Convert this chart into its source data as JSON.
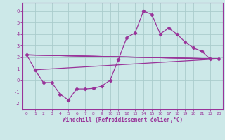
{
  "background_color": "#cce8e8",
  "grid_color": "#aacccc",
  "line_color": "#993399",
  "xlim": [
    -0.5,
    23.5
  ],
  "ylim": [
    -2.5,
    6.7
  ],
  "yticks": [
    -2,
    -1,
    0,
    1,
    2,
    3,
    4,
    5,
    6
  ],
  "xticks": [
    0,
    1,
    2,
    3,
    4,
    5,
    6,
    7,
    8,
    9,
    10,
    11,
    12,
    13,
    14,
    15,
    16,
    17,
    18,
    19,
    20,
    21,
    22,
    23
  ],
  "xlabel": "Windchill (Refroidissement éolien,°C)",
  "main_x": [
    0,
    1,
    2,
    3,
    4,
    5,
    6,
    7,
    8,
    9,
    10,
    11,
    12,
    13,
    14,
    15,
    16,
    17,
    18,
    19,
    20,
    21,
    22,
    23
  ],
  "main_y": [
    2.2,
    0.9,
    -0.2,
    -0.2,
    -1.2,
    -1.7,
    -0.75,
    -0.75,
    -0.7,
    -0.5,
    0.0,
    1.8,
    3.7,
    4.1,
    6.0,
    5.7,
    4.0,
    4.5,
    4.0,
    3.3,
    2.8,
    2.5,
    1.85,
    1.85
  ],
  "straight_lines": [
    {
      "x": [
        0,
        23
      ],
      "y": [
        2.2,
        1.85
      ]
    },
    {
      "x": [
        0,
        23
      ],
      "y": [
        2.2,
        1.85
      ]
    },
    {
      "x": [
        1,
        23
      ],
      "y": [
        0.9,
        1.85
      ]
    },
    {
      "x": [
        0,
        23
      ],
      "y": [
        2.2,
        1.85
      ]
    }
  ],
  "ylabel_ticks": [
    "-2",
    "-1",
    "0",
    "1",
    "2",
    "3",
    "4",
    "5",
    "6"
  ],
  "xlabel_ticks": [
    "0",
    "1",
    "2",
    "3",
    "4",
    "5",
    "6",
    "7",
    "8",
    "9",
    "10",
    "11",
    "12",
    "13",
    "14",
    "15",
    "16",
    "17",
    "18",
    "19",
    "20",
    "21",
    "22",
    "23"
  ],
  "lw": 0.9,
  "ms": 2.2
}
